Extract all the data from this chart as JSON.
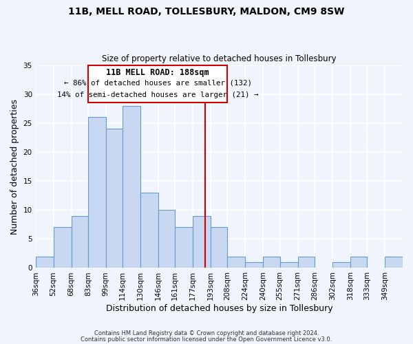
{
  "title": "11B, MELL ROAD, TOLLESBURY, MALDON, CM9 8SW",
  "subtitle": "Size of property relative to detached houses in Tollesbury",
  "xlabel": "Distribution of detached houses by size in Tollesbury",
  "ylabel": "Number of detached properties",
  "bin_labels": [
    "36sqm",
    "52sqm",
    "68sqm",
    "83sqm",
    "99sqm",
    "114sqm",
    "130sqm",
    "146sqm",
    "161sqm",
    "177sqm",
    "193sqm",
    "208sqm",
    "224sqm",
    "240sqm",
    "255sqm",
    "271sqm",
    "286sqm",
    "302sqm",
    "318sqm",
    "333sqm",
    "349sqm"
  ],
  "bar_heights": [
    2,
    7,
    9,
    26,
    24,
    28,
    13,
    10,
    7,
    9,
    7,
    2,
    1,
    2,
    1,
    2,
    0,
    1,
    2,
    0,
    2
  ],
  "bar_color": "#c8d8f0",
  "bar_edgecolor": "#6699cc",
  "bin_edges": [
    36,
    52,
    68,
    83,
    99,
    114,
    130,
    146,
    161,
    177,
    193,
    208,
    224,
    240,
    255,
    271,
    286,
    302,
    318,
    333,
    349,
    365
  ],
  "vline_x": 188,
  "vline_color": "#cc0000",
  "annotation_title": "11B MELL ROAD: 188sqm",
  "annotation_line1": "← 86% of detached houses are smaller (132)",
  "annotation_line2": "14% of semi-detached houses are larger (21) →",
  "annotation_box_edgecolor": "#cc0000",
  "ylim": [
    0,
    35
  ],
  "yticks": [
    0,
    5,
    10,
    15,
    20,
    25,
    30,
    35
  ],
  "footer1": "Contains HM Land Registry data © Crown copyright and database right 2024.",
  "footer2": "Contains public sector information licensed under the Open Government Licence v3.0.",
  "background_color": "#f0f4fc",
  "grid_color": "#ffffff",
  "title_fontsize": 10,
  "subtitle_fontsize": 8.5,
  "axis_label_fontsize": 9,
  "tick_fontsize": 7.5
}
